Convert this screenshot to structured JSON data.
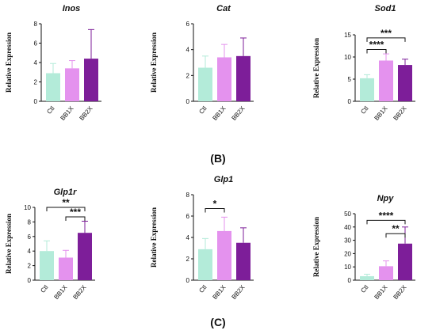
{
  "panel_labels": {
    "b": "(B)",
    "c": "(C)"
  },
  "colors": {
    "Ctl": "#b3ebd9",
    "BB1X": "#e492ee",
    "BB2X": "#7d1e99",
    "axis": "#111111"
  },
  "chart_data": [
    {
      "type": "bar",
      "title": "Inos",
      "ylabel": "Relative Expression",
      "categories": [
        "Ctl",
        "BB1X",
        "BB2X"
      ],
      "values": [
        2.9,
        3.4,
        4.4
      ],
      "errors": [
        1.0,
        0.8,
        3.0
      ],
      "ylim": [
        0,
        8
      ],
      "yticks": [
        "0",
        "2",
        "4",
        "6",
        "8"
      ],
      "significance": []
    },
    {
      "type": "bar",
      "title": "Cat",
      "ylabel": "Relative Expression",
      "categories": [
        "Ctl",
        "BB1X",
        "BB2X"
      ],
      "values": [
        2.6,
        3.4,
        3.5
      ],
      "errors": [
        0.9,
        1.0,
        1.4
      ],
      "ylim": [
        0,
        6
      ],
      "yticks": [
        "0",
        "2",
        "4",
        "6"
      ],
      "significance": []
    },
    {
      "type": "bar",
      "title": "Sod1",
      "ylabel": "Relative Expression",
      "categories": [
        "Ctl",
        "BB1X",
        "BB2X"
      ],
      "values": [
        5.2,
        9.2,
        8.2
      ],
      "errors": [
        0.8,
        1.5,
        1.3
      ],
      "ylim": [
        0,
        15
      ],
      "yticks": [
        "0",
        "5",
        "10",
        "15"
      ],
      "significance": [
        {
          "from": 0,
          "to": 1,
          "y": 11.7,
          "label": "****"
        },
        {
          "from": 0,
          "to": 2,
          "y": 14.3,
          "label": "***"
        }
      ]
    },
    {
      "type": "bar",
      "title": "Glp1r",
      "ylabel": "Relative Expression",
      "categories": [
        "Ctl",
        "BB1X",
        "BB2X"
      ],
      "values": [
        4.0,
        3.1,
        6.5
      ],
      "errors": [
        1.4,
        1.0,
        1.6
      ],
      "ylim": [
        0,
        10
      ],
      "yticks": [
        "0",
        "2",
        "4",
        "6",
        "8",
        "10"
      ],
      "significance": [
        {
          "from": 0,
          "to": 2,
          "y": 10.0,
          "label": "**"
        },
        {
          "from": 1,
          "to": 2,
          "y": 8.7,
          "label": "***"
        }
      ]
    },
    {
      "type": "bar",
      "title": "Glp1",
      "ylabel": "Relative Expression",
      "categories": [
        "Ctl",
        "BB1X",
        "BB2X"
      ],
      "values": [
        2.9,
        4.6,
        3.5
      ],
      "errors": [
        1.0,
        1.3,
        1.4
      ],
      "ylim": [
        0,
        8
      ],
      "yticks": [
        "0",
        "2",
        "4",
        "6",
        "8"
      ],
      "significance": [
        {
          "from": 0,
          "to": 1,
          "y": 6.7,
          "label": "*"
        }
      ]
    },
    {
      "type": "bar",
      "title": "Npy",
      "ylabel": "Relative Expression",
      "categories": [
        "Ctl",
        "BB1X",
        "BB2X"
      ],
      "values": [
        3.0,
        10.5,
        27.5
      ],
      "errors": [
        1.5,
        4.0,
        12.5
      ],
      "ylim": [
        0,
        50
      ],
      "yticks": [
        "0",
        "10",
        "20",
        "30",
        "40",
        "50"
      ],
      "significance": [
        {
          "from": 0,
          "to": 2,
          "y": 45.0,
          "label": "****"
        },
        {
          "from": 1,
          "to": 2,
          "y": 35.0,
          "label": "**"
        }
      ]
    }
  ]
}
